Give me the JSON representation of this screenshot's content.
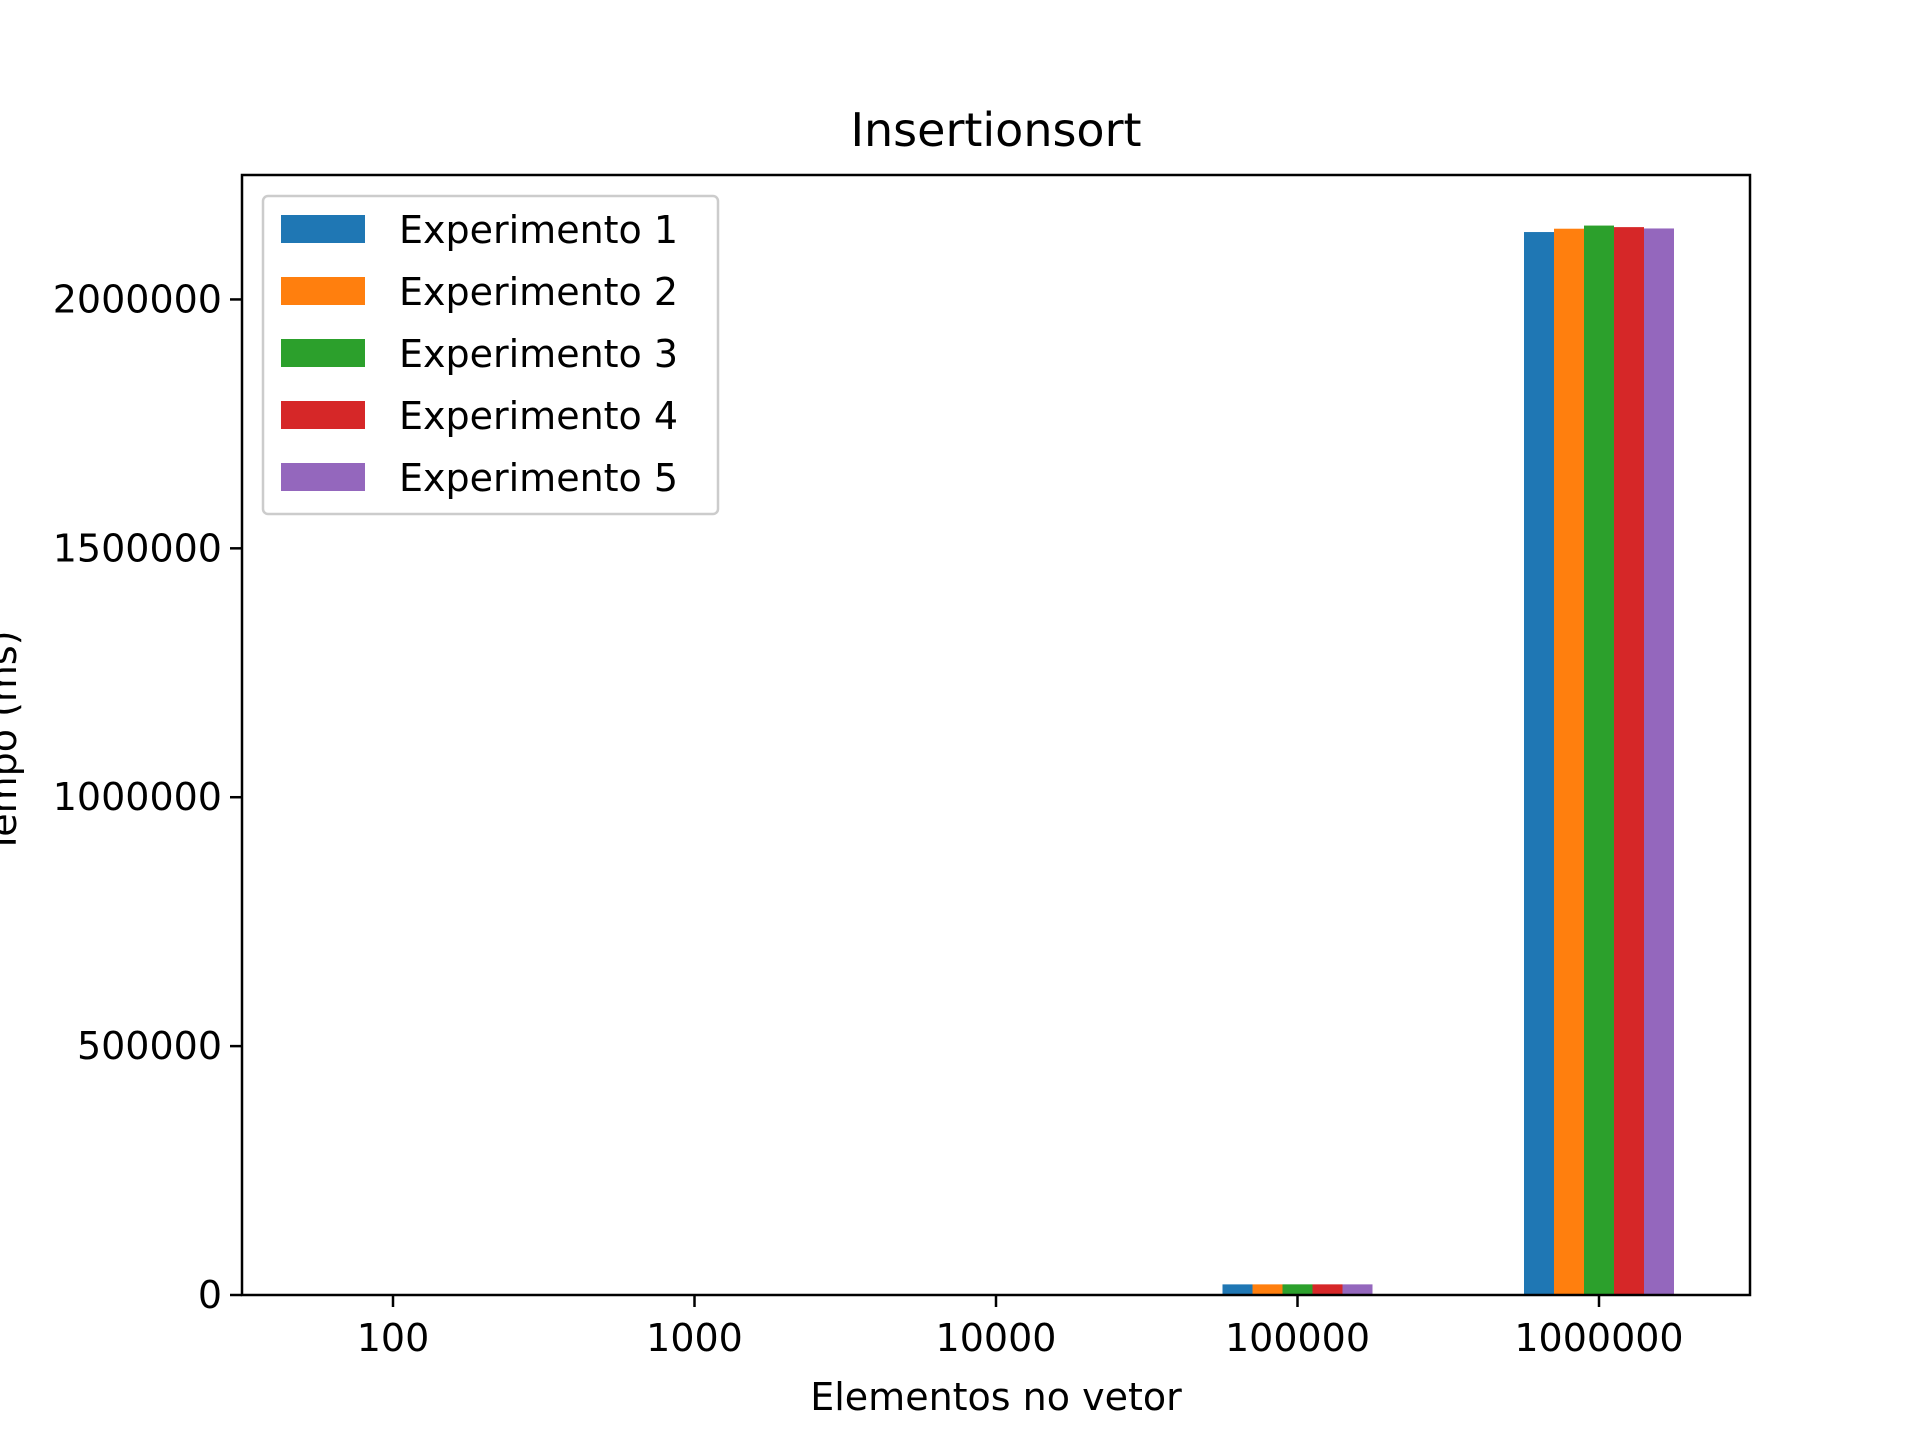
{
  "chart_data": {
    "type": "bar",
    "title": "Insertionsort",
    "xlabel": "Elementos no vetor",
    "ylabel": "Tempo (ms)",
    "categories": [
      "100",
      "1000",
      "10000",
      "100000",
      "1000000"
    ],
    "series": [
      {
        "name": "Experimento 1",
        "color": "#1f77b4",
        "values": [
          0,
          8,
          203,
          21330,
          2135400
        ]
      },
      {
        "name": "Experimento 2",
        "color": "#ff7f0e",
        "values": [
          0,
          8,
          205,
          21360,
          2142100
        ]
      },
      {
        "name": "Experimento 3",
        "color": "#2ca02c",
        "values": [
          0,
          8,
          204,
          21410,
          2148400
        ]
      },
      {
        "name": "Experimento 4",
        "color": "#d62728",
        "values": [
          0,
          8,
          206,
          21390,
          2145300
        ]
      },
      {
        "name": "Experimento 5",
        "color": "#9467bd",
        "values": [
          0,
          8,
          204,
          21370,
          2142600
        ]
      }
    ],
    "yticks": [
      0,
      500000,
      1000000,
      1500000,
      2000000
    ],
    "ylim": [
      0,
      2250000
    ],
    "grid": false,
    "legend_position": "top-left"
  }
}
